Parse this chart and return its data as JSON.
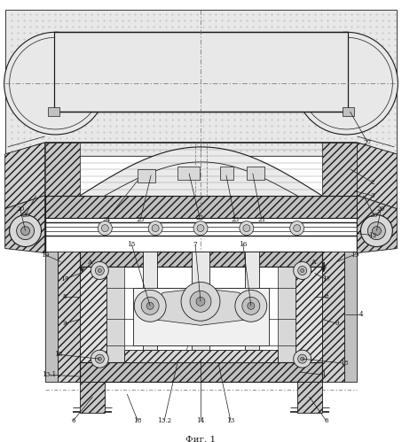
{
  "title": "Фиг. 1",
  "bg_color": "#ffffff",
  "lc": "#1a1a1a",
  "fig_width": 4.53,
  "fig_height": 4.99,
  "dpi": 100
}
